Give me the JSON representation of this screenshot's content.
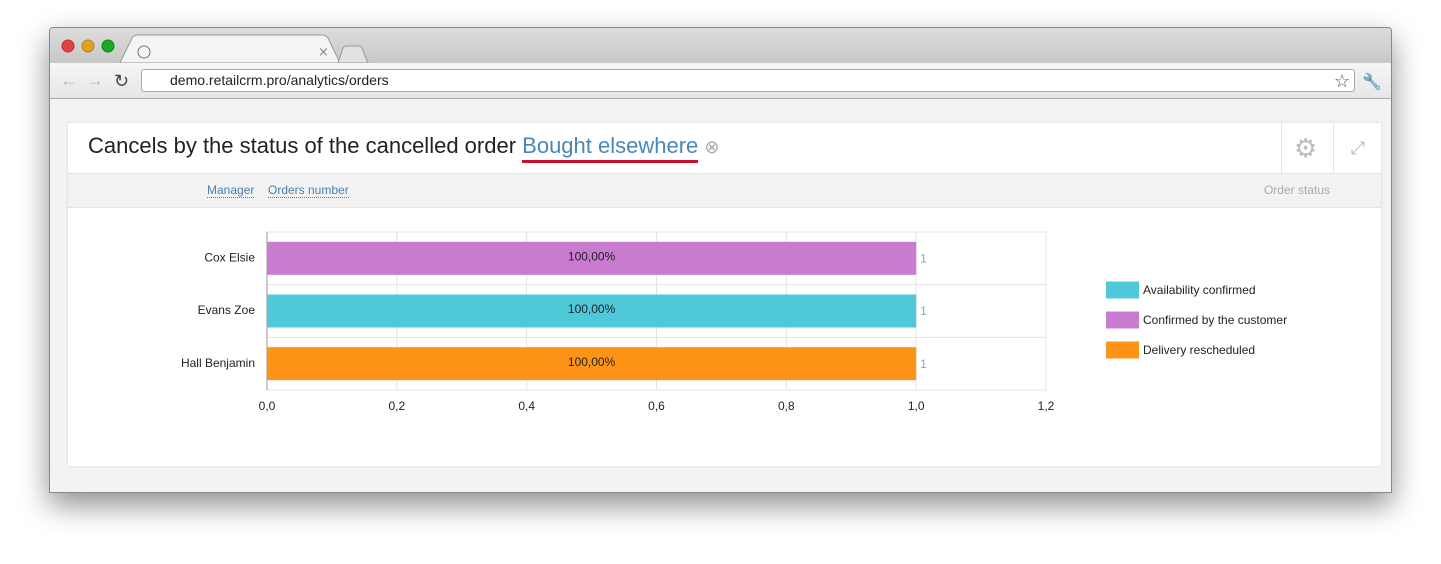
{
  "browser": {
    "url": "demo.retailcrm.pro/analytics/orders"
  },
  "widget": {
    "title": "Cancels by the status of the cancelled order",
    "filter": "Bought elsewhere",
    "columns": [
      "Manager",
      "Orders number"
    ],
    "group_label": "Order status"
  },
  "chart_data": {
    "type": "bar",
    "orientation": "horizontal",
    "stacked": true,
    "categories": [
      "Cox Elsie",
      "Evans Zoe",
      "Hall Benjamin"
    ],
    "series": [
      {
        "name": "Availability confirmed",
        "color": "#4fc9d9",
        "values": [
          null,
          1,
          null
        ],
        "percents": [
          null,
          100,
          null
        ],
        "percent_labels": [
          null,
          "100,00%",
          null
        ]
      },
      {
        "name": "Confirmed by the customer",
        "color": "#c97ccf",
        "values": [
          1,
          null,
          null
        ],
        "percents": [
          100,
          null,
          null
        ],
        "percent_labels": [
          "100,00%",
          null,
          null
        ]
      },
      {
        "name": "Delivery rescheduled",
        "color": "#fd9418",
        "values": [
          null,
          null,
          1
        ],
        "percents": [
          null,
          null,
          100
        ],
        "percent_labels": [
          null,
          null,
          "100,00%"
        ]
      }
    ],
    "xlim": [
      0,
      1.2
    ],
    "xticks": [
      {
        "value": 0,
        "label": "0,0"
      },
      {
        "value": 0.2,
        "label": "0,2"
      },
      {
        "value": 0.4,
        "label": "0,4"
      },
      {
        "value": 0.6,
        "label": "0,6"
      },
      {
        "value": 0.8,
        "label": "0,8"
      },
      {
        "value": 1,
        "label": "1,0"
      },
      {
        "value": 1.2,
        "label": "1,2"
      }
    ],
    "grid": true,
    "legend": "right"
  }
}
